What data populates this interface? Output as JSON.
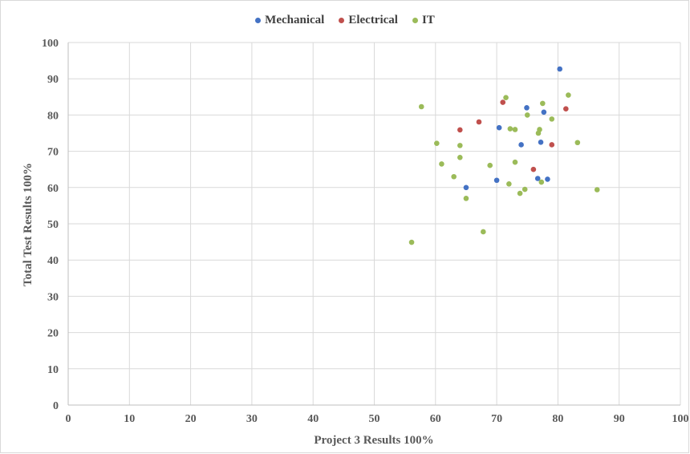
{
  "chart_data": {
    "type": "scatter",
    "title": "",
    "xlabel": "Project 3 Results 100%",
    "ylabel": "Total Test Results 100%",
    "xlim": [
      0,
      100
    ],
    "ylim": [
      0,
      100
    ],
    "xticks": [
      "0",
      "10",
      "20",
      "30",
      "40",
      "50",
      "60",
      "70",
      "80",
      "90",
      "100"
    ],
    "yticks": [
      "0",
      "10",
      "20",
      "30",
      "40",
      "50",
      "60",
      "70",
      "80",
      "90",
      "100"
    ],
    "grid": true,
    "legend_position": "top-center",
    "series": [
      {
        "name": "Mechanical",
        "color": "#4472c4",
        "points": [
          [
            80.3,
            92.7
          ],
          [
            74.9,
            82.0
          ],
          [
            77.7,
            80.8
          ],
          [
            70.4,
            76.5
          ],
          [
            77.2,
            72.5
          ],
          [
            74.0,
            71.8
          ],
          [
            70.0,
            62.0
          ],
          [
            76.7,
            62.5
          ],
          [
            78.3,
            62.3
          ],
          [
            65.0,
            60.0
          ]
        ]
      },
      {
        "name": "Electrical",
        "color": "#c0504d",
        "points": [
          [
            71.0,
            83.5
          ],
          [
            81.3,
            81.7
          ],
          [
            67.1,
            78.1
          ],
          [
            64.0,
            75.9
          ],
          [
            79.0,
            71.8
          ],
          [
            76.0,
            65.0
          ]
        ]
      },
      {
        "name": "IT",
        "color": "#9bbb59",
        "points": [
          [
            57.7,
            82.3
          ],
          [
            71.5,
            84.8
          ],
          [
            81.7,
            85.5
          ],
          [
            77.5,
            83.2
          ],
          [
            75.0,
            80.0
          ],
          [
            79.0,
            78.9
          ],
          [
            72.2,
            76.2
          ],
          [
            73.0,
            76.0
          ],
          [
            77.0,
            76.0
          ],
          [
            76.8,
            75.0
          ],
          [
            60.2,
            72.2
          ],
          [
            64.0,
            71.6
          ],
          [
            83.2,
            72.4
          ],
          [
            64.0,
            68.3
          ],
          [
            61.0,
            66.5
          ],
          [
            68.9,
            66.1
          ],
          [
            73.0,
            67.0
          ],
          [
            63.0,
            63.0
          ],
          [
            72.0,
            61.0
          ],
          [
            77.3,
            61.5
          ],
          [
            74.6,
            59.5
          ],
          [
            73.8,
            58.4
          ],
          [
            86.4,
            59.4
          ],
          [
            65.0,
            57.0
          ],
          [
            56.1,
            44.9
          ],
          [
            67.8,
            47.8
          ]
        ]
      }
    ]
  }
}
